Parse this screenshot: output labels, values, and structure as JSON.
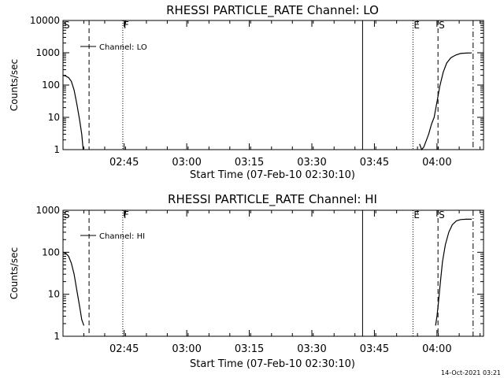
{
  "timestamp": "14-Oct-2021 03:21",
  "chart_data": [
    {
      "type": "line",
      "title": "RHESSI PARTICLE_RATE Channel: LO",
      "xlabel": "Start Time (07-Feb-10 02:30:10)",
      "ylabel": "Counts/sec",
      "y_scale": "log",
      "ylim": [
        1,
        10000
      ],
      "y_ticks": [
        1,
        10,
        100,
        1000,
        10000
      ],
      "y_tick_labels": [
        "1",
        "10",
        "100",
        "1000",
        "10000"
      ],
      "xlim": [
        0,
        6050
      ],
      "x_ticks": [
        880,
        1780,
        2680,
        3580,
        4480,
        5380
      ],
      "x_tick_labels": [
        "02:45",
        "03:00",
        "03:15",
        "03:30",
        "03:45",
        "04:00"
      ],
      "legend": {
        "label": "Channel: LO",
        "position": "top-left"
      },
      "markers": [
        {
          "label": "S",
          "t": 0,
          "style": "dash"
        },
        {
          "label": "",
          "t": 375,
          "style": "dash"
        },
        {
          "label": "F",
          "t": 860,
          "style": "dot"
        },
        {
          "label": "",
          "t": 4310,
          "style": "solid"
        },
        {
          "label": "E",
          "t": 5035,
          "style": "dot"
        },
        {
          "label": "S",
          "t": 5395,
          "style": "dash"
        },
        {
          "label": "",
          "t": 5900,
          "style": "dashdot"
        }
      ],
      "series": [
        {
          "name": "Channel: LO",
          "segments": [
            [
              [
                0,
                200
              ],
              [
                40,
                190
              ],
              [
                80,
                170
              ],
              [
                120,
                130
              ],
              [
                160,
                70
              ],
              [
                200,
                25
              ],
              [
                240,
                8
              ],
              [
                270,
                3
              ],
              [
                290,
                1
              ]
            ],
            [
              [
                5130,
                1.5
              ],
              [
                5160,
                1
              ],
              [
                5190,
                1.2
              ],
              [
                5230,
                2
              ],
              [
                5260,
                3
              ],
              [
                5300,
                6
              ],
              [
                5340,
                10
              ],
              [
                5380,
                30
              ],
              [
                5420,
                90
              ],
              [
                5470,
                250
              ],
              [
                5520,
                480
              ],
              [
                5580,
                700
              ],
              [
                5650,
                850
              ],
              [
                5720,
                950
              ],
              [
                5800,
                980
              ],
              [
                5880,
                990
              ]
            ]
          ]
        }
      ]
    },
    {
      "type": "line",
      "title": "RHESSI PARTICLE_RATE Channel: HI",
      "xlabel": "Start Time (07-Feb-10 02:30:10)",
      "ylabel": "Counts/sec",
      "y_scale": "log",
      "ylim": [
        1,
        1000
      ],
      "y_ticks": [
        1,
        10,
        100,
        1000
      ],
      "y_tick_labels": [
        "1",
        "10",
        "100",
        "1000"
      ],
      "xlim": [
        0,
        6050
      ],
      "x_ticks": [
        880,
        1780,
        2680,
        3580,
        4480,
        5380
      ],
      "x_tick_labels": [
        "02:45",
        "03:00",
        "03:15",
        "03:30",
        "03:45",
        "04:00"
      ],
      "legend": {
        "label": "Channel: HI",
        "position": "top-left"
      },
      "markers": [
        {
          "label": "S",
          "t": 0,
          "style": "dash"
        },
        {
          "label": "",
          "t": 375,
          "style": "dash"
        },
        {
          "label": "F",
          "t": 860,
          "style": "dot"
        },
        {
          "label": "",
          "t": 4310,
          "style": "solid"
        },
        {
          "label": "E",
          "t": 5035,
          "style": "dot"
        },
        {
          "label": "S",
          "t": 5395,
          "style": "dash"
        },
        {
          "label": "",
          "t": 5900,
          "style": "dashdot"
        }
      ],
      "series": [
        {
          "name": "Channel: HI",
          "segments": [
            [
              [
                0,
                100
              ],
              [
                40,
                95
              ],
              [
                80,
                80
              ],
              [
                120,
                55
              ],
              [
                160,
                30
              ],
              [
                200,
                12
              ],
              [
                240,
                5
              ],
              [
                270,
                2.5
              ],
              [
                300,
                1.8
              ]
            ],
            [
              [
                5360,
                1.8
              ],
              [
                5380,
                3
              ],
              [
                5400,
                6
              ],
              [
                5430,
                20
              ],
              [
                5460,
                60
              ],
              [
                5500,
                150
              ],
              [
                5550,
                300
              ],
              [
                5600,
                450
              ],
              [
                5660,
                560
              ],
              [
                5720,
                600
              ],
              [
                5800,
                610
              ],
              [
                5880,
                610
              ]
            ]
          ]
        }
      ]
    }
  ]
}
